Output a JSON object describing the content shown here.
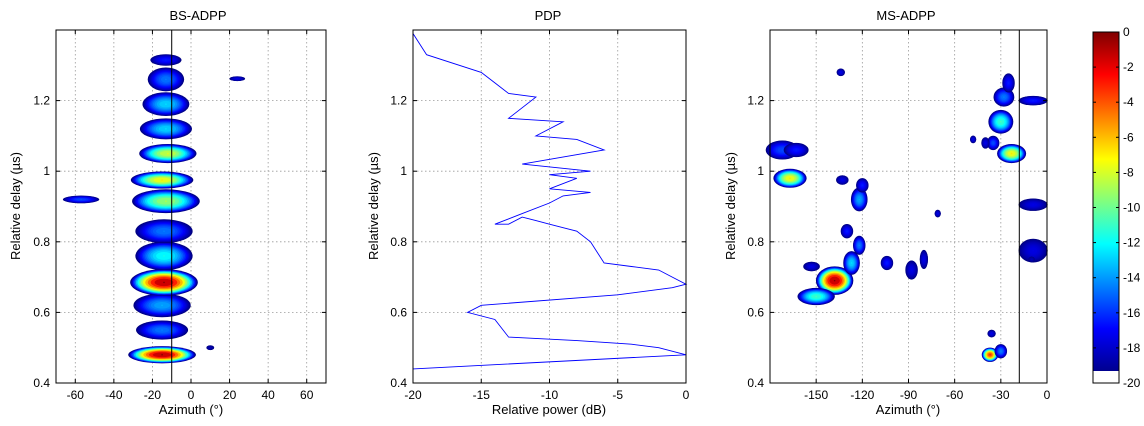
{
  "chart_data": [
    {
      "type": "heatmap",
      "title": "BS-ADPP",
      "xlabel": "Azimuth (°)",
      "ylabel": "Relative delay (µs)",
      "xlim": [
        -70,
        70
      ],
      "ylim": [
        0.4,
        1.4
      ],
      "xticks": [
        -60,
        -40,
        -20,
        0,
        20,
        40,
        60
      ],
      "yticks": [
        0.4,
        0.6,
        0.8,
        1,
        1.2
      ],
      "grid": true,
      "reference_line_x": -10,
      "clusters": [
        {
          "x": -15,
          "y": 0.48,
          "sx": 13,
          "sy": 0.018,
          "peak": 0
        },
        {
          "x": -15,
          "y": 0.55,
          "sx": 10,
          "sy": 0.02,
          "peak": -15
        },
        {
          "x": -15,
          "y": 0.62,
          "sx": 11,
          "sy": 0.025,
          "peak": -14
        },
        {
          "x": -14,
          "y": 0.685,
          "sx": 13,
          "sy": 0.028,
          "peak": 0
        },
        {
          "x": -14,
          "y": 0.76,
          "sx": 11,
          "sy": 0.03,
          "peak": -12
        },
        {
          "x": -14,
          "y": 0.83,
          "sx": 11,
          "sy": 0.025,
          "peak": -15
        },
        {
          "x": -13,
          "y": 0.915,
          "sx": 13,
          "sy": 0.025,
          "peak": -9
        },
        {
          "x": -15,
          "y": 0.975,
          "sx": 12,
          "sy": 0.018,
          "peak": -7
        },
        {
          "x": -12,
          "y": 1.05,
          "sx": 11,
          "sy": 0.02,
          "peak": -8
        },
        {
          "x": -13,
          "y": 1.12,
          "sx": 10,
          "sy": 0.022,
          "peak": -13
        },
        {
          "x": -13,
          "y": 1.19,
          "sx": 9,
          "sy": 0.025,
          "peak": -13
        },
        {
          "x": -13,
          "y": 1.26,
          "sx": 7,
          "sy": 0.025,
          "peak": -15
        },
        {
          "x": -13,
          "y": 1.315,
          "sx": 6,
          "sy": 0.012,
          "peak": -17
        },
        {
          "x": -57,
          "y": 0.92,
          "sx": 7,
          "sy": 0.008,
          "peak": -16
        },
        {
          "x": 24,
          "y": 1.262,
          "sx": 3,
          "sy": 0.005,
          "peak": -18
        },
        {
          "x": 10,
          "y": 0.5,
          "sx": 1.5,
          "sy": 0.005,
          "peak": -19
        }
      ]
    },
    {
      "type": "line",
      "title": "PDP",
      "xlabel": "Relative power (dB)",
      "ylabel": "Relative delay (µs)",
      "xlim": [
        -20,
        0
      ],
      "ylim": [
        0.4,
        1.4
      ],
      "xticks": [
        -20,
        -15,
        -10,
        -5,
        0
      ],
      "yticks": [
        0.4,
        0.6,
        0.8,
        1,
        1.2
      ],
      "grid": true,
      "series": [
        {
          "color": "#0000ff",
          "x": [
            -20,
            0,
            -2,
            -4,
            -8,
            -13,
            -14,
            -16,
            -15,
            -5,
            -1,
            0,
            -1,
            -2,
            -4,
            -6,
            -7,
            -8,
            -9,
            -10,
            -11,
            -12,
            -13,
            -14,
            -12,
            -10,
            -9,
            -7,
            -10,
            -8,
            -10,
            -7,
            -12,
            -6,
            -8,
            -11,
            -9,
            -13,
            -11,
            -13,
            -14,
            -15,
            -19,
            -20
          ],
          "y": [
            0.44,
            0.48,
            0.5,
            0.51,
            0.52,
            0.53,
            0.58,
            0.6,
            0.62,
            0.65,
            0.67,
            0.68,
            0.7,
            0.72,
            0.73,
            0.74,
            0.8,
            0.83,
            0.84,
            0.85,
            0.86,
            0.87,
            0.85,
            0.85,
            0.88,
            0.91,
            0.93,
            0.94,
            0.95,
            0.98,
            0.99,
            1.0,
            1.02,
            1.06,
            1.09,
            1.1,
            1.14,
            1.15,
            1.21,
            1.22,
            1.25,
            1.28,
            1.33,
            1.39
          ]
        }
      ]
    },
    {
      "type": "heatmap",
      "title": "MS-ADPP",
      "xlabel": "Azimuth (°)",
      "ylabel": "Relative delay (µs)",
      "xlim": [
        -180,
        0
      ],
      "ylim": [
        0.4,
        1.4
      ],
      "xticks": [
        -150,
        -120,
        -90,
        -60,
        -30,
        0
      ],
      "yticks": [
        0.4,
        0.6,
        0.8,
        1,
        1.2
      ],
      "grid": true,
      "reference_line_x": -18,
      "clusters": [
        {
          "x": -138,
          "y": 0.69,
          "sx": 9,
          "sy": 0.03,
          "peak": 0
        },
        {
          "x": -150,
          "y": 0.645,
          "sx": 9,
          "sy": 0.018,
          "peak": -11
        },
        {
          "x": -127,
          "y": 0.74,
          "sx": 4,
          "sy": 0.025,
          "peak": -13
        },
        {
          "x": -122,
          "y": 0.79,
          "sx": 3,
          "sy": 0.02,
          "peak": -15
        },
        {
          "x": -130,
          "y": 0.83,
          "sx": 3,
          "sy": 0.015,
          "peak": -17
        },
        {
          "x": -153,
          "y": 0.73,
          "sx": 4,
          "sy": 0.01,
          "peak": -18
        },
        {
          "x": -104,
          "y": 0.74,
          "sx": 3,
          "sy": 0.015,
          "peak": -17
        },
        {
          "x": -88,
          "y": 0.72,
          "sx": 3,
          "sy": 0.02,
          "peak": -18
        },
        {
          "x": -80,
          "y": 0.75,
          "sx": 2,
          "sy": 0.02,
          "peak": -18
        },
        {
          "x": -167,
          "y": 0.98,
          "sx": 8,
          "sy": 0.02,
          "peak": -7
        },
        {
          "x": -172,
          "y": 1.06,
          "sx": 8,
          "sy": 0.02,
          "peak": -16
        },
        {
          "x": -163,
          "y": 1.06,
          "sx": 6,
          "sy": 0.015,
          "peak": -17
        },
        {
          "x": -133,
          "y": 0.975,
          "sx": 3,
          "sy": 0.01,
          "peak": -18
        },
        {
          "x": -122,
          "y": 0.92,
          "sx": 4,
          "sy": 0.025,
          "peak": -14
        },
        {
          "x": -120,
          "y": 0.96,
          "sx": 3,
          "sy": 0.015,
          "peak": -17
        },
        {
          "x": -23,
          "y": 1.05,
          "sx": 7,
          "sy": 0.02,
          "peak": -7
        },
        {
          "x": -30,
          "y": 1.14,
          "sx": 6,
          "sy": 0.025,
          "peak": -11
        },
        {
          "x": -28,
          "y": 1.21,
          "sx": 5,
          "sy": 0.02,
          "peak": -15
        },
        {
          "x": -25,
          "y": 1.25,
          "sx": 3,
          "sy": 0.02,
          "peak": -17
        },
        {
          "x": -35,
          "y": 1.08,
          "sx": 3,
          "sy": 0.015,
          "peak": -16
        },
        {
          "x": -40,
          "y": 1.08,
          "sx": 2,
          "sy": 0.012,
          "peak": -18
        },
        {
          "x": -9,
          "y": 1.2,
          "sx": 7,
          "sy": 0.01,
          "peak": -17
        },
        {
          "x": -9,
          "y": 0.905,
          "sx": 7,
          "sy": 0.013,
          "peak": -18
        },
        {
          "x": -9,
          "y": 0.775,
          "sx": 7,
          "sy": 0.025,
          "peak": -18
        },
        {
          "x": -37,
          "y": 0.48,
          "sx": 4,
          "sy": 0.015,
          "peak": -3
        },
        {
          "x": -30,
          "y": 0.49,
          "sx": 3,
          "sy": 0.015,
          "peak": -15
        },
        {
          "x": -36,
          "y": 0.54,
          "sx": 2,
          "sy": 0.008,
          "peak": -18
        },
        {
          "x": -134,
          "y": 1.28,
          "sx": 2,
          "sy": 0.008,
          "peak": -18
        },
        {
          "x": -71,
          "y": 0.88,
          "sx": 1.5,
          "sy": 0.008,
          "peak": -18
        },
        {
          "x": -48,
          "y": 1.09,
          "sx": 1.5,
          "sy": 0.008,
          "peak": -18
        },
        {
          "x": -10,
          "y": 0.75,
          "sx": 1.5,
          "sy": 0.006,
          "peak": -19
        }
      ]
    }
  ],
  "colorbar": {
    "range": [
      -20,
      0
    ],
    "ticks": [
      "0",
      "-2",
      "-4",
      "-6",
      "-8",
      "-10",
      "-12",
      "-14",
      "-16",
      "-18",
      "-20"
    ],
    "colormap": "jet"
  }
}
